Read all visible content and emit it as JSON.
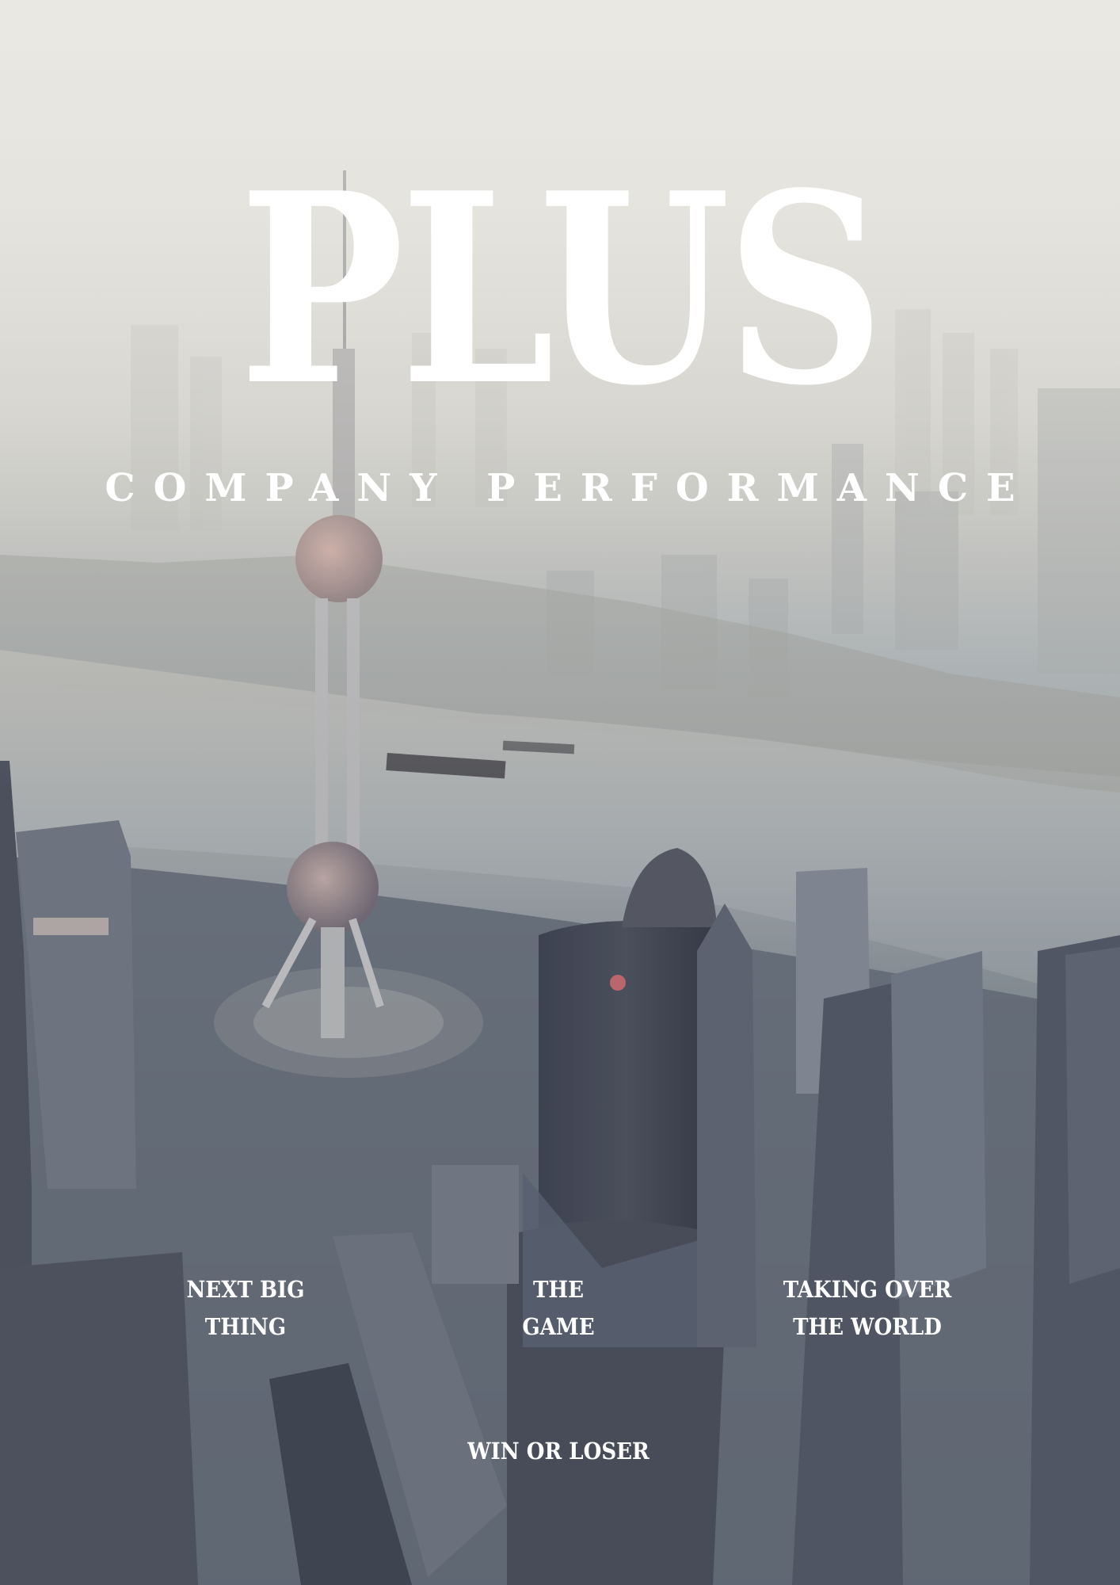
{
  "cover": {
    "title": "PLUS",
    "subtitle": "COMPANY PERFORMANCE",
    "taglines": [
      "NEXT BIG\nTHING",
      "THE\nGAME",
      "TAKING OVER\nTHE WORLD"
    ],
    "footer_tag": "WIN OR LOSER"
  },
  "colors": {
    "text": "#ffffff",
    "sky_haze": "#e6e4de",
    "river": "#9ea7ad",
    "city_shadow": "#555b67"
  }
}
